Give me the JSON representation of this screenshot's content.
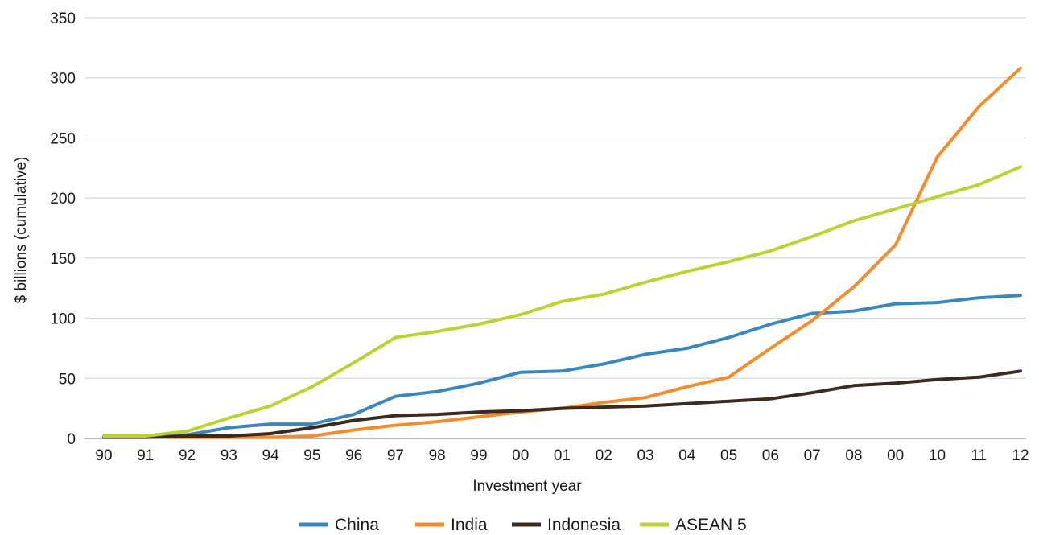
{
  "chart_data": {
    "type": "line",
    "title": "",
    "xlabel": "Investment year",
    "ylabel": "$ billions (cumulative)",
    "ylim": [
      0,
      350
    ],
    "yticks": [
      0,
      50,
      100,
      150,
      200,
      250,
      300,
      350
    ],
    "grid": "horizontal",
    "legend_position": "bottom",
    "categories": [
      "90",
      "91",
      "92",
      "93",
      "94",
      "95",
      "96",
      "97",
      "98",
      "99",
      "00",
      "01",
      "02",
      "03",
      "04",
      "05",
      "06",
      "07",
      "08",
      "00",
      "10",
      "11",
      "12"
    ],
    "series": [
      {
        "name": "China",
        "color": "#3a87c0",
        "values": [
          1,
          1,
          3,
          9,
          12,
          12,
          20,
          35,
          39,
          46,
          55,
          56,
          62,
          70,
          75,
          84,
          95,
          104,
          106,
          112,
          113,
          117,
          119
        ]
      },
      {
        "name": "India",
        "color": "#f28c2c",
        "values": [
          1,
          1,
          1,
          1,
          1,
          2,
          7,
          11,
          14,
          18,
          22,
          25,
          30,
          34,
          43,
          51,
          75,
          98,
          126,
          161,
          234,
          276,
          308
        ]
      },
      {
        "name": "Indonesia",
        "color": "#3d2a1e",
        "values": [
          1,
          1,
          2,
          2,
          4,
          9,
          15,
          19,
          20,
          22,
          23,
          25,
          26,
          27,
          29,
          31,
          33,
          38,
          44,
          46,
          49,
          51,
          56
        ]
      },
      {
        "name": "ASEAN 5",
        "color": "#b8d432",
        "values": [
          2,
          2,
          6,
          17,
          27,
          43,
          63,
          84,
          89,
          95,
          103,
          114,
          120,
          130,
          139,
          147,
          156,
          168,
          181,
          191,
          201,
          211,
          226
        ]
      }
    ]
  }
}
